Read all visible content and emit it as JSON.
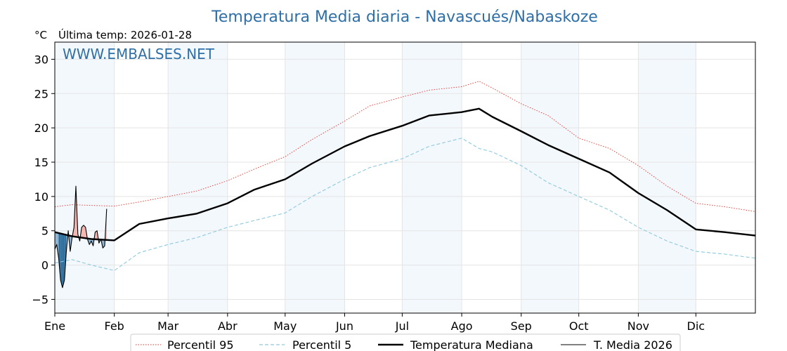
{
  "chart_data": {
    "type": "line",
    "title": "Temperatura Media diaria - Navascués/Nabaskoze",
    "unit_label": "°C",
    "last_temp_label": "Última temp: 2026-01-28",
    "watermark": "WWW.EMBALSES.NET",
    "x_unit": "day_of_year",
    "xlim": [
      1,
      366
    ],
    "ylim": [
      -7,
      32.5
    ],
    "yticks": [
      -5,
      0,
      5,
      10,
      15,
      20,
      25,
      30
    ],
    "month_labels": [
      "Ene",
      "Feb",
      "Mar",
      "Abr",
      "May",
      "Jun",
      "Jul",
      "Ago",
      "Sep",
      "Oct",
      "Nov",
      "Dic"
    ],
    "month_starts": [
      1,
      32,
      60,
      91,
      121,
      152,
      182,
      213,
      244,
      274,
      305,
      335
    ],
    "shaded_months": [
      "Ene",
      "Mar",
      "May",
      "Jul",
      "Sep",
      "Nov"
    ],
    "grid": true,
    "legend_position": "bottom-center",
    "series": [
      {
        "name": "Percentil 95",
        "style": "dotted",
        "color": "#e8302a",
        "x": [
          1,
          10,
          20,
          32,
          45,
          60,
          75,
          91,
          105,
          121,
          135,
          152,
          165,
          182,
          196,
          213,
          222,
          229,
          244,
          258,
          274,
          290,
          305,
          320,
          335,
          350,
          366
        ],
        "y": [
          8.5,
          8.8,
          8.7,
          8.6,
          9.2,
          10.0,
          10.8,
          12.3,
          14.0,
          15.8,
          18.3,
          21.0,
          23.2,
          24.5,
          25.5,
          26.0,
          26.8,
          25.8,
          23.5,
          21.8,
          18.5,
          17.0,
          14.5,
          11.5,
          9.0,
          8.5,
          7.8
        ]
      },
      {
        "name": "Percentil 5",
        "style": "dashed",
        "color": "#8ec9dc",
        "x": [
          1,
          10,
          20,
          32,
          45,
          60,
          75,
          91,
          105,
          121,
          135,
          152,
          165,
          182,
          196,
          213,
          222,
          229,
          244,
          258,
          274,
          290,
          305,
          320,
          335,
          350,
          366
        ],
        "y": [
          0.3,
          0.8,
          0.0,
          -0.8,
          1.8,
          3.0,
          4.0,
          5.5,
          6.5,
          7.6,
          10.0,
          12.5,
          14.2,
          15.5,
          17.3,
          18.5,
          17.0,
          16.5,
          14.5,
          12.0,
          10.0,
          8.0,
          5.5,
          3.5,
          2.0,
          1.6,
          1.0
        ]
      },
      {
        "name": "Temperatura Mediana",
        "style": "solid-thick",
        "color": "#000000",
        "x": [
          1,
          10,
          20,
          32,
          45,
          60,
          75,
          91,
          105,
          121,
          135,
          152,
          165,
          182,
          196,
          213,
          222,
          229,
          244,
          258,
          274,
          290,
          305,
          320,
          335,
          350,
          366
        ],
        "y": [
          4.8,
          4.2,
          3.8,
          3.6,
          6.0,
          6.8,
          7.5,
          9.0,
          11.0,
          12.5,
          14.8,
          17.3,
          18.8,
          20.3,
          21.8,
          22.3,
          22.8,
          21.6,
          19.5,
          17.5,
          15.5,
          13.5,
          10.5,
          8.0,
          5.2,
          4.8,
          4.3
        ]
      },
      {
        "name": "T. Media 2026",
        "style": "solid-thin",
        "color": "#000000",
        "x": [
          1,
          2,
          3,
          4,
          5,
          6,
          7,
          8,
          9,
          10,
          11,
          12,
          13,
          14,
          15,
          16,
          17,
          18,
          19,
          20,
          21,
          22,
          23,
          24,
          25,
          26,
          27,
          28
        ],
        "y": [
          2.3,
          3.0,
          1.0,
          -2.2,
          -3.3,
          -2.2,
          2.0,
          5.0,
          2.0,
          4.0,
          5.5,
          11.5,
          4.5,
          3.5,
          5.5,
          5.8,
          5.5,
          3.8,
          3.0,
          3.5,
          2.8,
          4.8,
          5.0,
          3.2,
          3.8,
          2.5,
          2.8,
          8.2
        ]
      }
    ]
  }
}
